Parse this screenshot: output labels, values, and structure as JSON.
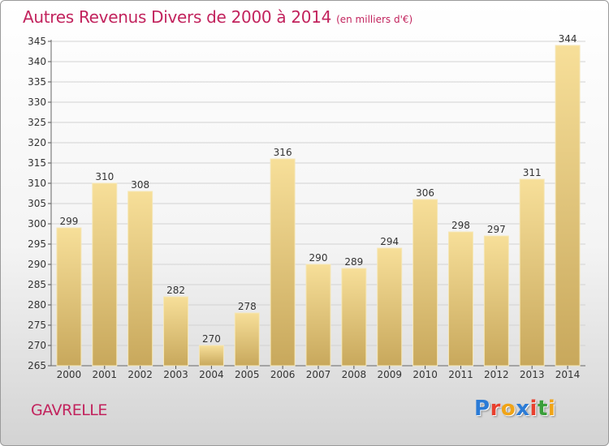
{
  "header": {
    "title": "Autres Revenus Divers de 2000 à 2014",
    "subtitle": "(en milliers d'€)"
  },
  "footer": {
    "place": "GAVRELLE",
    "logo": "Proxiti"
  },
  "colors": {
    "accent": "#c2235d",
    "bar_light": "#f7df99",
    "bar_dark": "#c8a85c",
    "logo_letters": [
      "#2b7bd6",
      "#e8402e",
      "#f0a417",
      "#2b7bd6",
      "#e8402e",
      "#3a9f3a",
      "#f0a417"
    ]
  },
  "chart_data": {
    "type": "bar",
    "title": "Autres Revenus Divers de 2000 à 2014",
    "subtitle": "(en milliers d'€)",
    "categories": [
      "2000",
      "2001",
      "2002",
      "2003",
      "2004",
      "2005",
      "2006",
      "2007",
      "2008",
      "2009",
      "2010",
      "2011",
      "2012",
      "2013",
      "2014"
    ],
    "values": [
      299,
      310,
      308,
      282,
      270,
      278,
      316,
      290,
      289,
      294,
      306,
      298,
      297,
      311,
      344
    ],
    "data_labels": [
      "299",
      "310",
      "308",
      "282",
      "270",
      "278",
      "316",
      "290",
      "289",
      "294",
      "306",
      "298",
      "297",
      "311",
      "344"
    ],
    "ylim": [
      265,
      345
    ],
    "yticks": [
      "265",
      "270",
      "275",
      "280",
      "285",
      "290",
      "295",
      "300",
      "305",
      "310",
      "315",
      "320",
      "325",
      "330",
      "335",
      "340",
      "345"
    ],
    "grid": true
  }
}
